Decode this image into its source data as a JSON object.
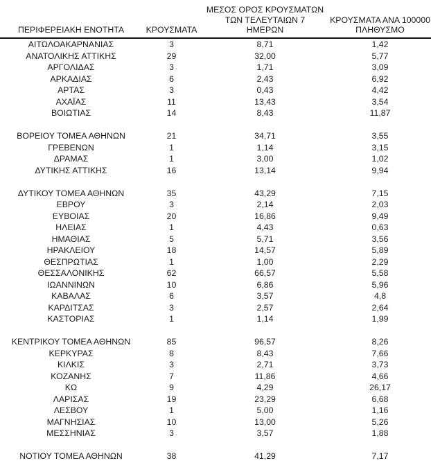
{
  "chart_data": {
    "type": "table",
    "title": "",
    "columns": [
      "ΠΕΡΙΦΕΡΕΙΑΚΗ ΕΝΟΤΗΤΑ",
      "ΚΡΟΥΣΜΑΤΑ",
      "ΜΕΣΟΣ ΟΡΟΣ ΚΡΟΥΣΜΑΤΩΝ ΤΩΝ ΤΕΛΕΥΤΑΙΩΝ 7 ΗΜΕΡΩΝ",
      "ΚΡΟΥΣΜΑΤΑ ΑΝΑ 100000 ΠΛΗΘΥΣΜΟ"
    ],
    "header_lines": [
      [
        "ΠΕΡΙΦΕΡΕΙΑΚΗ ΕΝΟΤΗΤΑ"
      ],
      [
        "ΚΡΟΥΣΜΑΤΑ"
      ],
      [
        "ΜΕΣΟΣ ΟΡΟΣ ΚΡΟΥΣΜΑΤΩΝ",
        "ΤΩΝ ΤΕΛΕΥΤΑΙΩΝ 7",
        "ΗΜΕΡΩΝ"
      ],
      [
        "ΚΡΟΥΣΜΑΤΑ ΑΝΑ 100000",
        "ΠΛΗΘΥΣΜΟ"
      ]
    ],
    "groups": [
      {
        "rows": [
          [
            "ΑΙΤΩΛΟΑΚΑΡΝΑΝΙΑΣ",
            "3",
            "8,71",
            "1,42"
          ],
          [
            "ΑΝΑΤΟΛΙΚΗΣ ΑΤΤΙΚΗΣ",
            "29",
            "32,00",
            "5,77"
          ],
          [
            "ΑΡΓΟΛΙΔΑΣ",
            "3",
            "1,71",
            "3,09"
          ],
          [
            "ΑΡΚΑΔΙΑΣ",
            "6",
            "2,43",
            "6,92"
          ],
          [
            "ΑΡΤΑΣ",
            "3",
            "0,43",
            "4,42"
          ],
          [
            "ΑΧΑΪΑΣ",
            "11",
            "13,43",
            "3,54"
          ],
          [
            "ΒΟΙΩΤΙΑΣ",
            "14",
            "8,43",
            "11,87"
          ]
        ]
      },
      {
        "rows": [
          [
            "ΒΟΡΕΙΟΥ ΤΟΜΕΑ ΑΘΗΝΩΝ",
            "21",
            "34,71",
            "3,55"
          ],
          [
            "ΓΡΕΒΕΝΩΝ",
            "1",
            "1,14",
            "3,15"
          ],
          [
            "ΔΡΑΜΑΣ",
            "1",
            "3,00",
            "1,02"
          ],
          [
            "ΔΥΤΙΚΗΣ ΑΤΤΙΚΗΣ",
            "16",
            "13,14",
            "9,94"
          ]
        ]
      },
      {
        "rows": [
          [
            "ΔΥΤΙΚΟΥ ΤΟΜΕΑ ΑΘΗΝΩΝ",
            "35",
            "43,29",
            "7,15"
          ],
          [
            "ΕΒΡΟΥ",
            "3",
            "2,14",
            "2,03"
          ],
          [
            "ΕΥΒΟΙΑΣ",
            "20",
            "16,86",
            "9,49"
          ],
          [
            "ΗΛΕΙΑΣ",
            "1",
            "4,43",
            "0,63"
          ],
          [
            "ΗΜΑΘΙΑΣ",
            "5",
            "5,71",
            "3,56"
          ],
          [
            "ΗΡΑΚΛΕΙΟΥ",
            "18",
            "14,57",
            "5,89"
          ],
          [
            "ΘΕΣΠΡΩΤΙΑΣ",
            "1",
            "1,00",
            "2,29"
          ],
          [
            "ΘΕΣΣΑΛΟΝΙΚΗΣ",
            "62",
            "66,57",
            "5,58"
          ],
          [
            "ΙΩΑΝΝΙΝΩΝ",
            "10",
            "6,86",
            "5,96"
          ],
          [
            "ΚΑΒΑΛΑΣ",
            "6",
            "3,57",
            "4,8"
          ],
          [
            "ΚΑΡΔΙΤΣΑΣ",
            "3",
            "2,57",
            "2,64"
          ],
          [
            "ΚΑΣΤΟΡΙΑΣ",
            "1",
            "1,14",
            "1,99"
          ]
        ]
      },
      {
        "rows": [
          [
            "ΚΕΝΤΡΙΚΟΥ ΤΟΜΕΑ ΑΘΗΝΩΝ",
            "85",
            "96,57",
            "8,26"
          ],
          [
            "ΚΕΡΚΥΡΑΣ",
            "8",
            "8,43",
            "7,66"
          ],
          [
            "ΚΙΛΚΙΣ",
            "3",
            "2,71",
            "3,73"
          ],
          [
            "ΚΟΖΑΝΗΣ",
            "7",
            "11,86",
            "4,66"
          ],
          [
            "ΚΩ",
            "9",
            "4,29",
            "26,17"
          ],
          [
            "ΛΑΡΙΣΑΣ",
            "19",
            "23,29",
            "6,68"
          ],
          [
            "ΛΕΣΒΟΥ",
            "1",
            "5,00",
            "1,16"
          ],
          [
            "ΜΑΓΝΗΣΙΑΣ",
            "10",
            "13,00",
            "5,26"
          ],
          [
            "ΜΕΣΣΗΝΙΑΣ",
            "3",
            "3,57",
            "1,88"
          ]
        ]
      },
      {
        "rows": [
          [
            "ΝΟΤΙΟΥ ΤΟΜΕΑ ΑΘΗΝΩΝ",
            "38",
            "41,29",
            "7,17"
          ]
        ]
      }
    ],
    "layout": {
      "grid": false,
      "header_rule_color": "#111111",
      "text_color": "#1c1c1c",
      "background_color": "#ffffff",
      "group_separator": "blank-row"
    }
  }
}
